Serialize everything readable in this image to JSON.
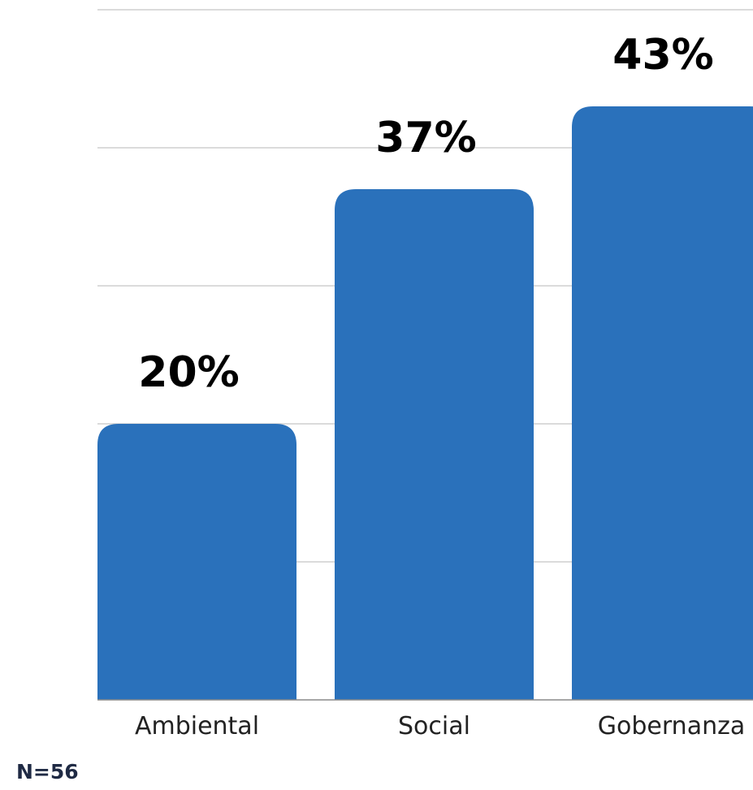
{
  "chart_data": {
    "type": "bar",
    "categories": [
      "Ambiental",
      "Social",
      "Gobernanza"
    ],
    "values": [
      20,
      37,
      43
    ],
    "value_labels": [
      "20%",
      "37%",
      "43%"
    ],
    "ylim": [
      0,
      50
    ],
    "grid": true,
    "bar_color": "#2a71bb",
    "note": "N=56"
  }
}
